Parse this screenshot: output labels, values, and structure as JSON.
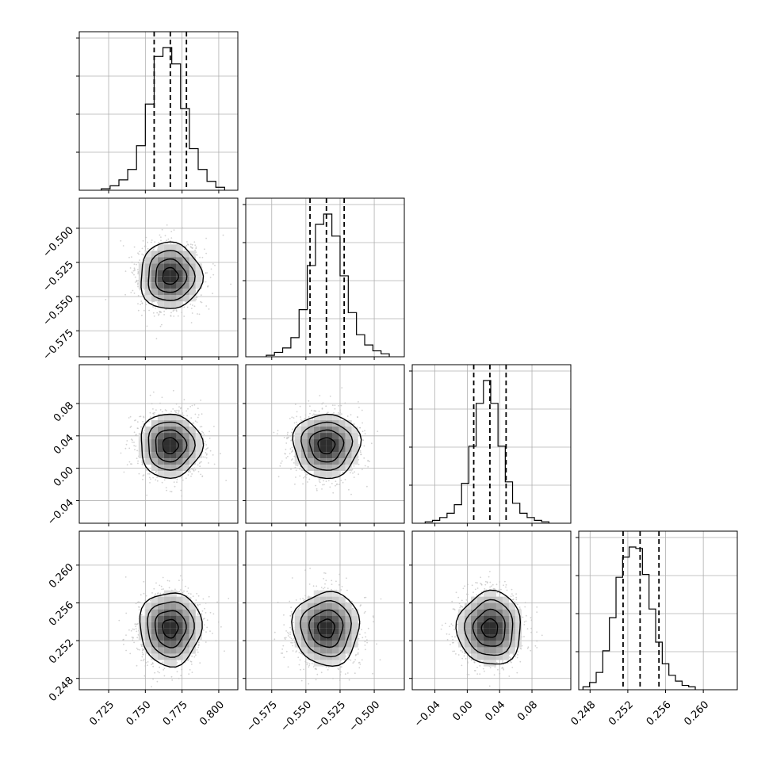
{
  "chart_data": {
    "type": "corner",
    "parameters": [
      {
        "median": 0.767,
        "sigma": 0.0105,
        "quantiles": [
          0.756,
          0.767,
          0.778
        ],
        "range": [
          0.705,
          0.813
        ],
        "ticks": [
          0.725,
          0.75,
          0.775,
          0.8
        ],
        "tick_labels": [
          "0.725",
          "0.750",
          "0.775",
          "0.800"
        ]
      },
      {
        "median": -0.535,
        "sigma": 0.0122,
        "quantiles": [
          -0.547,
          -0.535,
          -0.522
        ],
        "range": [
          -0.594,
          -0.478
        ],
        "ticks": [
          -0.575,
          -0.55,
          -0.525,
          -0.5
        ],
        "tick_labels": [
          "−0.575",
          "−0.550",
          "−0.525",
          "−0.500"
        ]
      },
      {
        "median": 0.028,
        "sigma": 0.0198,
        "quantiles": [
          0.008,
          0.028,
          0.048
        ],
        "range": [
          -0.068,
          0.128
        ],
        "ticks": [
          -0.04,
          0.0,
          0.04,
          0.08
        ],
        "tick_labels": [
          "−0.04",
          "0.00",
          "0.04",
          "0.08"
        ]
      },
      {
        "median": 0.2533,
        "sigma": 0.00195,
        "quantiles": [
          0.2515,
          0.2533,
          0.2553
        ],
        "range": [
          0.2468,
          0.2636
        ],
        "ticks": [
          0.248,
          0.252,
          0.256,
          0.26
        ],
        "tick_labels": [
          "0.248",
          "0.252",
          "0.256",
          "0.260"
        ]
      }
    ],
    "histograms": [
      [
        1,
        3,
        7,
        14,
        30,
        58,
        90,
        96,
        85,
        55,
        28,
        14,
        6,
        2
      ],
      [
        1,
        3,
        6,
        13,
        32,
        62,
        90,
        97,
        82,
        55,
        30,
        15,
        8,
        4,
        2
      ],
      [
        1,
        2,
        4,
        7,
        13,
        28,
        54,
        84,
        100,
        84,
        54,
        29,
        14,
        7,
        4,
        2,
        1
      ],
      [
        2,
        5,
        12,
        27,
        50,
        78,
        92,
        99,
        98,
        80,
        56,
        33,
        18,
        10,
        6,
        3,
        2
      ]
    ],
    "histogram_bins": [
      {
        "start": 0.72,
        "step": 0.006
      },
      {
        "start": -0.579,
        "step": 0.006
      },
      {
        "start": -0.052,
        "step": 0.009
      },
      {
        "start": 0.24725,
        "step": 0.0007
      }
    ],
    "grid": true,
    "colors": {
      "points": "#bfbfbf",
      "contour": "#000000",
      "density_low": "#ffffff",
      "density_high": "#000000"
    }
  }
}
